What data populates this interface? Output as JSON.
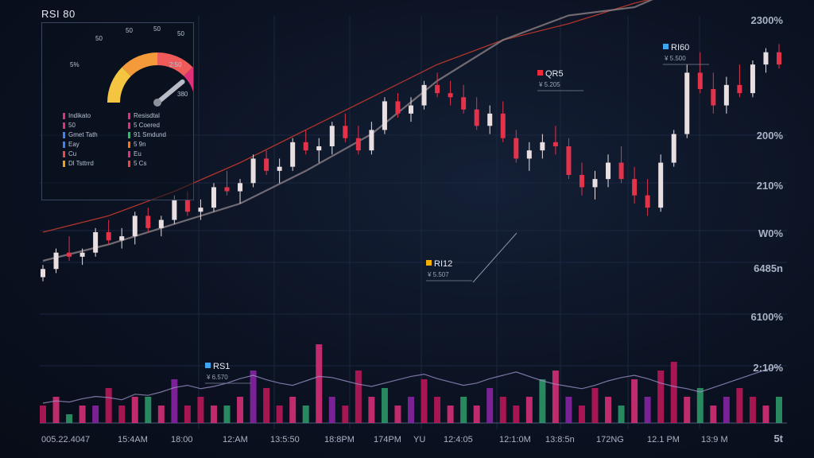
{
  "header": {
    "title": "RSI 80"
  },
  "gauge": {
    "ticks": [
      "50",
      "50",
      "50",
      "50",
      "5%",
      "2:50",
      "380"
    ],
    "level": 0.78,
    "colors": [
      "#f5c542",
      "#f59a3a",
      "#ef5a5a",
      "#e0307a"
    ]
  },
  "panel_legend": [
    {
      "label": "Indikato",
      "color": "#e0307a"
    },
    {
      "label": "Resisdtal",
      "color": "#e0307a"
    },
    {
      "label": "50",
      "color": "#e0307a"
    },
    {
      "label": "5 Coered",
      "color": "#e0307a"
    },
    {
      "label": "Gmet Tath",
      "color": "#3b82f6"
    },
    {
      "label": "91 Smdund",
      "color": "#22c55e"
    },
    {
      "label": "Eay",
      "color": "#3b82f6"
    },
    {
      "label": "5 9n",
      "color": "#f97316"
    },
    {
      "label": "Cu",
      "color": "#ef4444"
    },
    {
      "label": "Eu",
      "color": "#e0307a"
    },
    {
      "label": "Dl Tsttrrd",
      "color": "#f59e0b"
    },
    {
      "label": "5 Cs",
      "color": "#ef4444"
    }
  ],
  "right_axis": [
    "2300%",
    "200%",
    "210%",
    "W0%",
    "6485n",
    "6100%",
    "2:10%",
    "5t"
  ],
  "x_axis": [
    "005.22.4047",
    "15:4AM",
    "18:00",
    "12:AM",
    "13:5:50",
    "18:8PM",
    "174PM",
    "YU",
    "12:4:05",
    "12:1:0M",
    "13:8:5n",
    "172NG",
    "12.1 PM",
    "13:9 M"
  ],
  "annotations": [
    {
      "label": "QR5",
      "sub": "¥ 5.205",
      "color": "#ef2b3b"
    },
    {
      "label": "RI12",
      "sub": "¥ 5.507",
      "color": "#f5b000"
    },
    {
      "label": "RI60",
      "sub": "¥ 5.500",
      "color": "#3da6f0"
    },
    {
      "label": "RS1",
      "sub": "¥ 6.570",
      "color": "#3da6f0"
    }
  ],
  "chart_data": {
    "type": "candlestick",
    "title": "RSI 80",
    "candles": [
      [
        40,
        43,
        39,
        42
      ],
      [
        42,
        47,
        41,
        46
      ],
      [
        46,
        50,
        44,
        45
      ],
      [
        45,
        47,
        43,
        46
      ],
      [
        46,
        52,
        45,
        51
      ],
      [
        51,
        54,
        48,
        49
      ],
      [
        49,
        52,
        47,
        50
      ],
      [
        50,
        56,
        48,
        55
      ],
      [
        55,
        57,
        51,
        52
      ],
      [
        52,
        55,
        50,
        54
      ],
      [
        54,
        60,
        53,
        59
      ],
      [
        59,
        61,
        55,
        56
      ],
      [
        56,
        59,
        54,
        57
      ],
      [
        57,
        63,
        56,
        62
      ],
      [
        62,
        66,
        60,
        61
      ],
      [
        61,
        64,
        58,
        63
      ],
      [
        63,
        70,
        62,
        69
      ],
      [
        69,
        71,
        65,
        66
      ],
      [
        66,
        69,
        63,
        67
      ],
      [
        67,
        74,
        66,
        73
      ],
      [
        73,
        76,
        70,
        71
      ],
      [
        71,
        74,
        68,
        72
      ],
      [
        72,
        78,
        70,
        77
      ],
      [
        77,
        80,
        73,
        74
      ],
      [
        74,
        77,
        70,
        71
      ],
      [
        71,
        78,
        70,
        76
      ],
      [
        76,
        84,
        75,
        83
      ],
      [
        83,
        85,
        79,
        80
      ],
      [
        80,
        84,
        78,
        82
      ],
      [
        82,
        88,
        81,
        87
      ],
      [
        87,
        90,
        84,
        85
      ],
      [
        85,
        88,
        82,
        84
      ],
      [
        84,
        87,
        80,
        81
      ],
      [
        81,
        84,
        76,
        77
      ],
      [
        77,
        82,
        75,
        80
      ],
      [
        80,
        83,
        73,
        74
      ],
      [
        74,
        76,
        68,
        69
      ],
      [
        69,
        73,
        66,
        71
      ],
      [
        71,
        75,
        69,
        73
      ],
      [
        73,
        77,
        70,
        72
      ],
      [
        72,
        74,
        64,
        65
      ],
      [
        65,
        68,
        60,
        62
      ],
      [
        62,
        66,
        59,
        64
      ],
      [
        64,
        70,
        62,
        68
      ],
      [
        68,
        72,
        63,
        64
      ],
      [
        64,
        67,
        58,
        60
      ],
      [
        60,
        64,
        55,
        57
      ],
      [
        57,
        70,
        56,
        68
      ],
      [
        68,
        76,
        67,
        75
      ],
      [
        75,
        92,
        74,
        90
      ],
      [
        90,
        95,
        85,
        86
      ],
      [
        86,
        90,
        80,
        82
      ],
      [
        82,
        89,
        80,
        87
      ],
      [
        87,
        92,
        84,
        85
      ],
      [
        85,
        93,
        84,
        92
      ],
      [
        92,
        96,
        90,
        95
      ],
      [
        95,
        97,
        91,
        92
      ]
    ],
    "ma_slow": [
      [
        0,
        21
      ],
      [
        5,
        25
      ],
      [
        10,
        31
      ],
      [
        15,
        38
      ],
      [
        20,
        46
      ],
      [
        25,
        54
      ],
      [
        30,
        62
      ],
      [
        35,
        68
      ],
      [
        40,
        72
      ],
      [
        45,
        77
      ],
      [
        50,
        81
      ],
      [
        56,
        84
      ]
    ],
    "ma_fast": [
      [
        0,
        14
      ],
      [
        5,
        18
      ],
      [
        10,
        23
      ],
      [
        15,
        28
      ],
      [
        20,
        36
      ],
      [
        25,
        45
      ],
      [
        30,
        58
      ],
      [
        35,
        68
      ],
      [
        40,
        74
      ],
      [
        45,
        76
      ],
      [
        50,
        83
      ],
      [
        56,
        86
      ]
    ],
    "volume": [
      2,
      3,
      1,
      2,
      2,
      4,
      2,
      3,
      3,
      2,
      5,
      2,
      3,
      2,
      2,
      3,
      6,
      4,
      2,
      3,
      2,
      9,
      3,
      2,
      6,
      3,
      4,
      2,
      3,
      5,
      3,
      2,
      3,
      2,
      4,
      3,
      2,
      3,
      5,
      6,
      3,
      2,
      4,
      3,
      2,
      5,
      3,
      6,
      7,
      3,
      4,
      2,
      3,
      4,
      3,
      2,
      3
    ],
    "osc": [
      20,
      22,
      21,
      24,
      26,
      25,
      23,
      28,
      27,
      30,
      34,
      36,
      33,
      35,
      38,
      42,
      45,
      41,
      38,
      36,
      40,
      44,
      43,
      40,
      37,
      35,
      38,
      41,
      44,
      46,
      42,
      39,
      36,
      38,
      42,
      45,
      48,
      44,
      40,
      37,
      35,
      33,
      36,
      40,
      43,
      45,
      42,
      38,
      35,
      33,
      30,
      34,
      38,
      42,
      46,
      50,
      53
    ]
  }
}
